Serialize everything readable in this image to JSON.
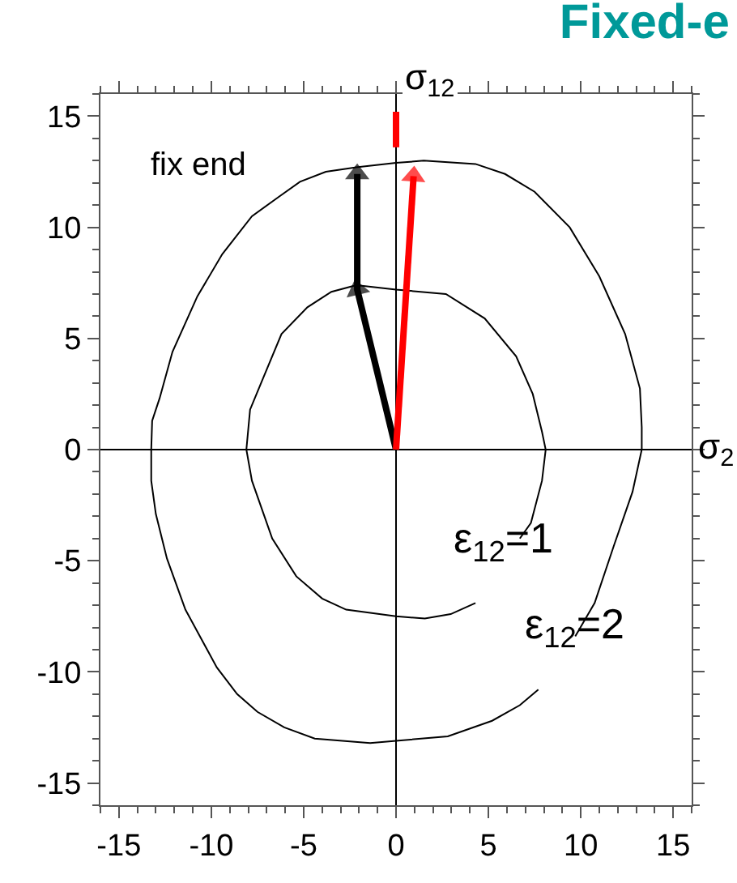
{
  "chart_data": {
    "type": "line",
    "title": "Fixed-e",
    "series": [
      {
        "color": "#000000",
        "marker": "none",
        "x": [
          -2.15,
          0,
          2.7,
          4.8,
          6.5,
          7.4,
          7.9,
          8.1,
          7.9,
          7.3,
          6.7,
          null,
          4.3,
          2.96,
          1.56,
          0,
          -2.7,
          -4.0,
          -5.4,
          -6.7,
          -7.8,
          -8.1,
          -7.9,
          -7.3,
          -6.2,
          -4.8,
          -3.5,
          -2.15
        ],
        "values": [
          7.4,
          7.2,
          7.0,
          5.9,
          4.2,
          2.5,
          0.8,
          0,
          -1.4,
          -3.3,
          -4.0,
          null,
          -6.9,
          -7.4,
          -7.6,
          -7.5,
          -7.2,
          -6.7,
          -5.7,
          -4.0,
          -1.4,
          0,
          1.8,
          3.0,
          5.2,
          6.4,
          7.1,
          7.4
        ]
      },
      {
        "color": "#000000",
        "marker": "none",
        "x": [
          -2.15,
          0,
          1.5,
          4.3,
          5.9,
          7.5,
          9.4,
          11.0,
          12.4,
          13.2,
          13.3,
          13.3,
          12.8,
          11.8,
          10.75,
          9.7,
          null,
          7.7,
          6.7,
          5.2,
          2.8,
          0,
          -1.4,
          -4.4,
          -6.05,
          -7.5,
          -8.6,
          -9.7,
          -11.4,
          -12.4,
          -13.0,
          -13.25,
          -13.25,
          -13.2,
          -12.8,
          -12.1,
          -10.75,
          -9.4,
          -7.8,
          -6.3,
          -5.2,
          -3.8,
          -2.15
        ],
        "values": [
          12.7,
          12.9,
          13.0,
          12.85,
          12.4,
          11.6,
          10.0,
          7.8,
          5.2,
          2.75,
          1.0,
          0,
          -1.9,
          -4.3,
          -6.9,
          -8.4,
          null,
          -10.8,
          -11.5,
          -12.2,
          -12.9,
          -13.1,
          -13.2,
          -13.0,
          -12.5,
          -11.8,
          -11.0,
          -9.8,
          -7.2,
          -4.9,
          -2.9,
          -1.4,
          0,
          1.3,
          2.3,
          4.4,
          6.9,
          8.8,
          10.5,
          11.4,
          12.05,
          12.5,
          12.7
        ]
      },
      {
        "color": "#000000",
        "marker": "triangle",
        "x": [
          0,
          -2.1,
          -2.1
        ],
        "values": [
          0,
          7.2,
          12.4
        ]
      },
      {
        "color": "#ff0000",
        "marker": "triangle",
        "x": [
          0,
          0.95
        ],
        "values": [
          0,
          12.3
        ]
      },
      {
        "color": "#ff0000",
        "marker": "none",
        "x": [
          0,
          0
        ],
        "values": [
          13.6,
          15.2
        ]
      }
    ],
    "annotations": [
      "fix end",
      "ε$_{12}$=1",
      "ε$_{12}$=2"
    ],
    "ref_lines": [
      {
        "axis": "x",
        "value": 0,
        "color": "#000000",
        "label": "σ$_{12}$"
      },
      {
        "axis": "y",
        "value": 0,
        "color": "#000000",
        "label": "σ$_{2}$"
      }
    ],
    "xlim": [
      -16,
      16
    ],
    "xticks": [
      -15,
      -10,
      -5,
      0,
      5,
      10,
      15
    ],
    "ylim": [
      -16,
      16
    ],
    "yticks": [
      -15,
      -10,
      -5,
      0,
      5,
      10,
      15
    ],
    "grid": false
  }
}
